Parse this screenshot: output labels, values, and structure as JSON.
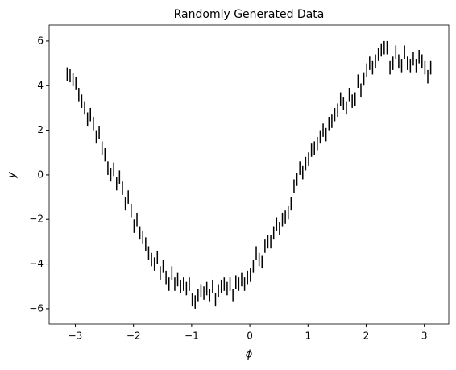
{
  "chart_data": {
    "type": "errorbar",
    "title": "Randomly Generated Data",
    "xlabel": "ϕ",
    "ylabel": "y",
    "x": [
      -3.14,
      -3.09,
      -3.04,
      -2.99,
      -2.94,
      -2.89,
      -2.84,
      -2.79,
      -2.74,
      -2.69,
      -2.64,
      -2.59,
      -2.54,
      -2.49,
      -2.44,
      -2.39,
      -2.34,
      -2.29,
      -2.24,
      -2.19,
      -2.14,
      -2.09,
      -2.04,
      -1.99,
      -1.94,
      -1.89,
      -1.84,
      -1.79,
      -1.74,
      -1.69,
      -1.64,
      -1.59,
      -1.54,
      -1.49,
      -1.44,
      -1.39,
      -1.34,
      -1.29,
      -1.24,
      -1.19,
      -1.14,
      -1.09,
      -1.04,
      -0.99,
      -0.94,
      -0.89,
      -0.84,
      -0.79,
      -0.74,
      -0.69,
      -0.64,
      -0.59,
      -0.54,
      -0.49,
      -0.44,
      -0.39,
      -0.34,
      -0.29,
      -0.24,
      -0.19,
      -0.14,
      -0.09,
      -0.04,
      0.01,
      0.06,
      0.11,
      0.16,
      0.21,
      0.26,
      0.31,
      0.36,
      0.41,
      0.46,
      0.51,
      0.56,
      0.61,
      0.66,
      0.71,
      0.76,
      0.81,
      0.86,
      0.91,
      0.96,
      1.01,
      1.06,
      1.11,
      1.16,
      1.21,
      1.26,
      1.31,
      1.36,
      1.41,
      1.46,
      1.51,
      1.56,
      1.61,
      1.66,
      1.71,
      1.76,
      1.81,
      1.86,
      1.91,
      1.96,
      2.01,
      2.06,
      2.11,
      2.16,
      2.21,
      2.26,
      2.31,
      2.36,
      2.41,
      2.46,
      2.51,
      2.56,
      2.61,
      2.66,
      2.71,
      2.76,
      2.81,
      2.86,
      2.91,
      2.96,
      3.01,
      3.06,
      3.11
    ],
    "values": [
      4.52,
      4.45,
      4.27,
      4.1,
      3.6,
      3.3,
      3.0,
      2.5,
      2.7,
      2.3,
      1.7,
      1.9,
      1.2,
      0.9,
      0.3,
      0.0,
      0.25,
      -0.4,
      -0.1,
      -0.6,
      -1.3,
      -1.0,
      -1.6,
      -2.3,
      -2.0,
      -2.6,
      -2.8,
      -3.1,
      -3.5,
      -3.8,
      -4.0,
      -3.7,
      -4.4,
      -4.1,
      -4.6,
      -4.9,
      -4.4,
      -4.9,
      -4.7,
      -5.0,
      -4.9,
      -5.1,
      -4.9,
      -5.6,
      -5.7,
      -5.4,
      -5.2,
      -5.3,
      -5.1,
      -5.4,
      -5.0,
      -5.6,
      -5.2,
      -5.0,
      -4.9,
      -5.1,
      -4.9,
      -5.4,
      -4.8,
      -4.9,
      -4.7,
      -4.9,
      -4.6,
      -4.5,
      -4.1,
      -3.5,
      -3.8,
      -3.9,
      -3.2,
      -3.0,
      -3.0,
      -2.6,
      -2.2,
      -2.4,
      -2.0,
      -1.9,
      -1.7,
      -1.3,
      -0.5,
      -0.2,
      0.3,
      0.1,
      0.5,
      0.7,
      1.1,
      1.2,
      1.4,
      1.7,
      2.0,
      1.8,
      2.3,
      2.4,
      2.7,
      2.9,
      3.4,
      3.2,
      3.0,
      3.6,
      3.3,
      3.4,
      4.2,
      3.8,
      4.3,
      4.7,
      5.0,
      4.8,
      5.1,
      5.4,
      5.6,
      5.7,
      5.7,
      4.8,
      5.0,
      5.5,
      5.1,
      4.9,
      5.5,
      5.0,
      4.9,
      5.2,
      4.9,
      5.3,
      5.1,
      4.8,
      4.4,
      4.8
    ],
    "yerr": 0.3,
    "color": "#000000",
    "xlim": [
      -3.45,
      3.42
    ],
    "ylim": [
      -6.69,
      6.72
    ],
    "xticks": [
      {
        "value": -3,
        "label": "−3"
      },
      {
        "value": -2,
        "label": "−2"
      },
      {
        "value": -1,
        "label": "−1"
      },
      0,
      1,
      2,
      3
    ],
    "yticks": [
      {
        "value": -6,
        "label": "−6"
      },
      {
        "value": -4,
        "label": "−4"
      },
      {
        "value": -2,
        "label": "−2"
      },
      0,
      2,
      4,
      6
    ]
  }
}
